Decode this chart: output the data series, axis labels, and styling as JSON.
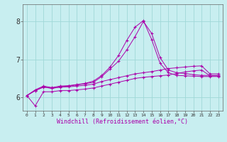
{
  "bg_color": "#c8eef0",
  "grid_color": "#a0d8d8",
  "line_color": "#aa00aa",
  "xlabel": "Windchill (Refroidissement éolien,°C)",
  "xlim": [
    -0.5,
    23.5
  ],
  "ylim": [
    5.65,
    8.45
  ],
  "yticks": [
    6,
    7,
    8
  ],
  "xticks": [
    0,
    1,
    2,
    3,
    4,
    5,
    6,
    7,
    8,
    9,
    10,
    11,
    12,
    13,
    14,
    15,
    16,
    17,
    18,
    19,
    20,
    21,
    22,
    23
  ],
  "series": [
    [
      6.05,
      6.18,
      6.27,
      6.24,
      6.27,
      6.28,
      6.3,
      6.32,
      6.35,
      6.42,
      6.47,
      6.52,
      6.57,
      6.62,
      6.65,
      6.68,
      6.72,
      6.76,
      6.78,
      6.8,
      6.82,
      6.83,
      6.62,
      6.62
    ],
    [
      6.05,
      6.18,
      6.28,
      6.24,
      6.28,
      6.3,
      6.33,
      6.36,
      6.4,
      6.55,
      6.75,
      6.95,
      7.25,
      7.6,
      8.0,
      7.68,
      7.05,
      6.72,
      6.65,
      6.63,
      6.6,
      6.58,
      6.58,
      6.58
    ],
    [
      6.05,
      6.2,
      6.3,
      6.26,
      6.3,
      6.31,
      6.34,
      6.37,
      6.43,
      6.58,
      6.8,
      7.1,
      7.5,
      7.85,
      8.02,
      7.52,
      6.9,
      6.65,
      6.58,
      6.57,
      6.56,
      6.55,
      6.55,
      6.55
    ],
    [
      6.05,
      5.78,
      6.15,
      6.15,
      6.18,
      6.18,
      6.2,
      6.22,
      6.25,
      6.3,
      6.35,
      6.4,
      6.45,
      6.5,
      6.53,
      6.55,
      6.57,
      6.59,
      6.63,
      6.67,
      6.7,
      6.72,
      6.57,
      6.57
    ]
  ]
}
